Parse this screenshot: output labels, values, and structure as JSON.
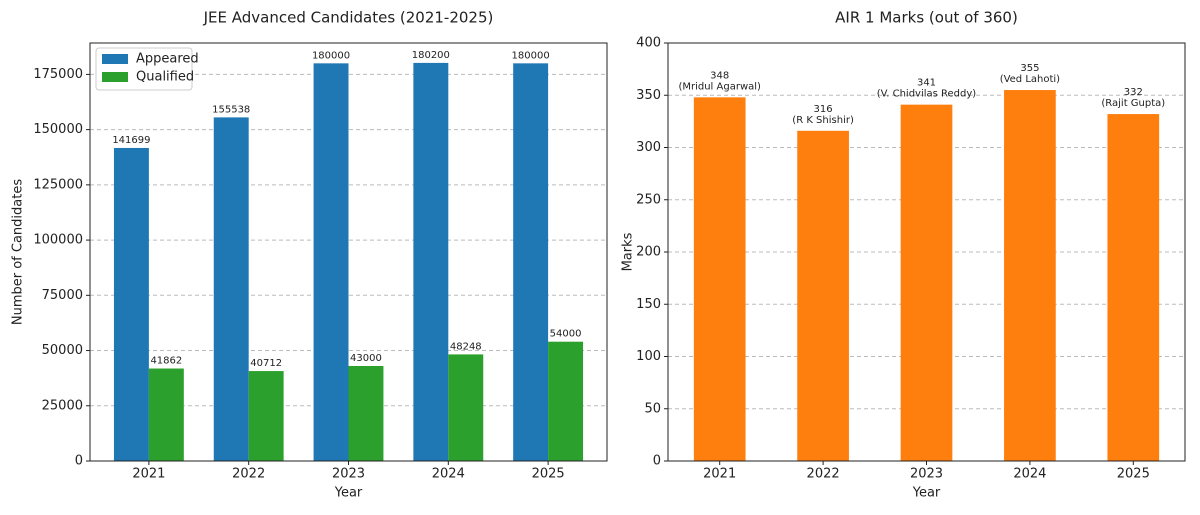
{
  "chart_data": [
    {
      "type": "grouped-bar",
      "title": "JEE Advanced Candidates (2021-2025)",
      "xlabel": "Year",
      "ylabel": "Number of Candidates",
      "categories": [
        "2021",
        "2022",
        "2023",
        "2024",
        "2025"
      ],
      "series": [
        {
          "name": "Appeared",
          "color": "#1f77b4",
          "values": [
            141699,
            155538,
            180000,
            180200,
            180000
          ]
        },
        {
          "name": "Qualified",
          "color": "#2ca02c",
          "values": [
            41862,
            40712,
            43000,
            48248,
            54000
          ]
        }
      ],
      "ylim": [
        0,
        189210
      ],
      "yticks": [
        0,
        25000,
        50000,
        75000,
        100000,
        125000,
        150000,
        175000
      ],
      "grid": true,
      "legend": "upper-left"
    },
    {
      "type": "bar",
      "title": "AIR 1 Marks (out of 360)",
      "xlabel": "Year",
      "ylabel": "Marks",
      "categories": [
        "2021",
        "2022",
        "2023",
        "2024",
        "2025"
      ],
      "values": [
        348,
        316,
        341,
        355,
        332
      ],
      "color": "#ff7f0e",
      "names": [
        "(Mridul Agarwal)",
        "(R K Shishir)",
        "(V. Chidvilas Reddy)",
        "(Ved Lahoti)",
        "(Rajit Gupta)"
      ],
      "ylim": [
        0,
        400
      ],
      "yticks": [
        0,
        50,
        100,
        150,
        200,
        250,
        300,
        350,
        400
      ],
      "grid": true
    }
  ]
}
